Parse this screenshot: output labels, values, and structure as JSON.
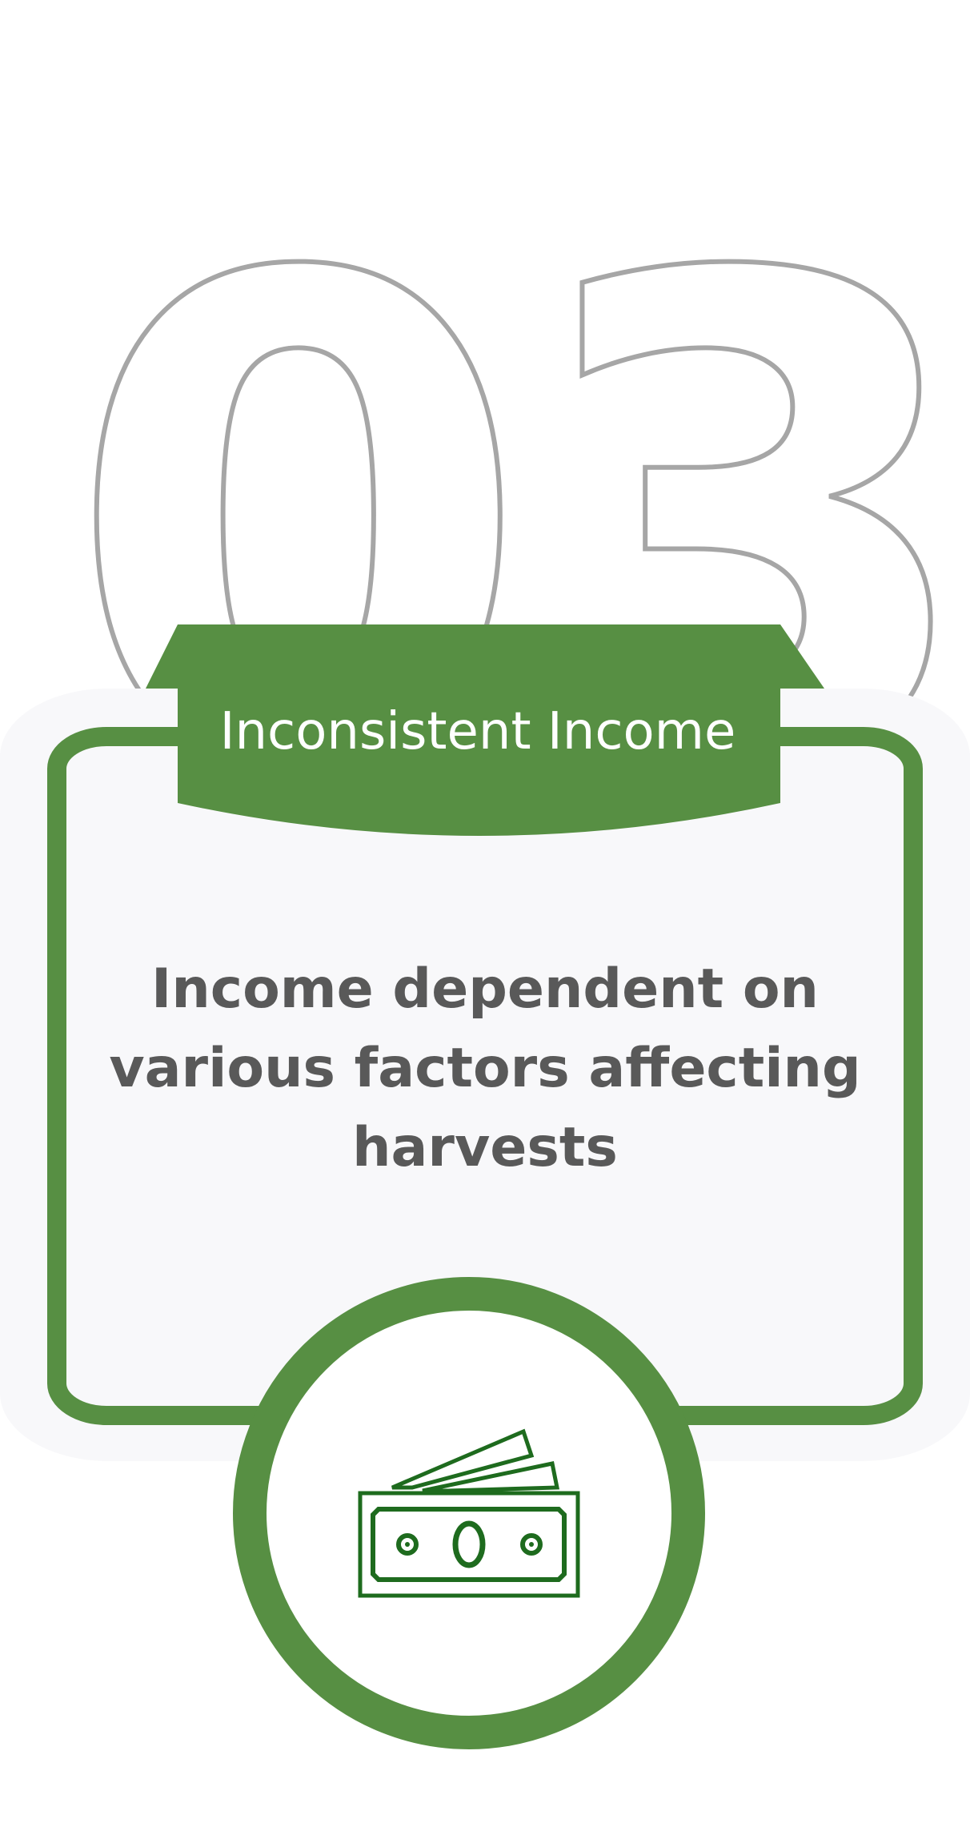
{
  "step": {
    "number": "03",
    "title": "Inconsistent Income",
    "description_lines": [
      "Income dependent on",
      "various factors affecting",
      "harvests"
    ],
    "icon": "money-bills-icon"
  },
  "colors": {
    "accent": "#578f43",
    "number_outline": "#a6a6a6",
    "card_bg": "#f8f8fa",
    "body_text": "#595959",
    "title_text": "#ffffff",
    "icon": "#1e6b1e"
  }
}
